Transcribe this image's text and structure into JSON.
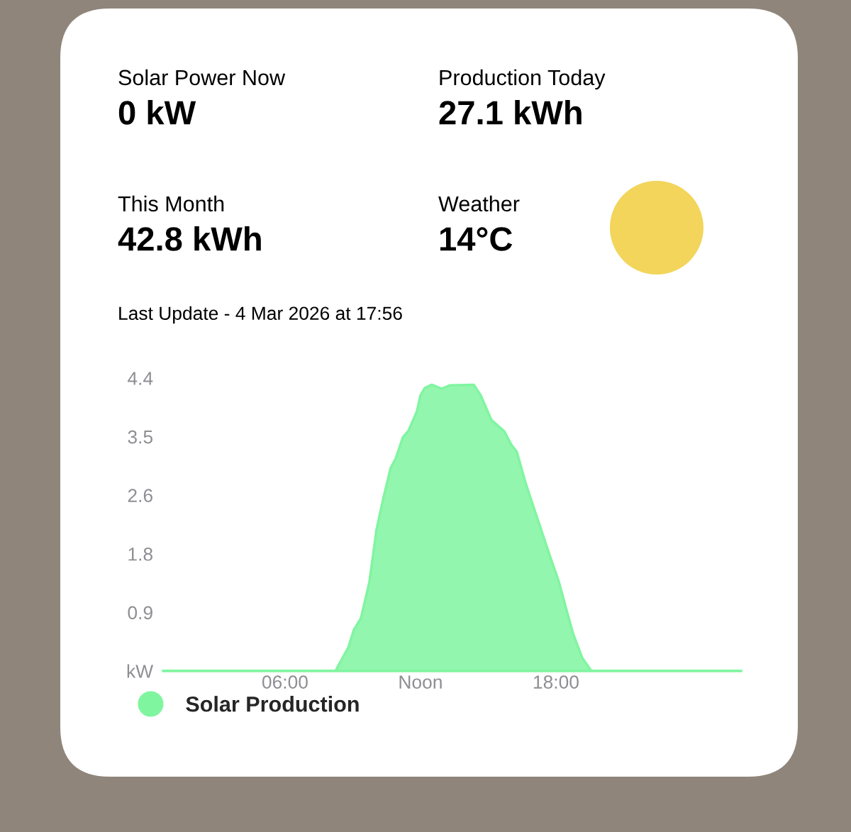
{
  "chart_data": [
    {
      "type": "other",
      "annotations": [
        "Solar Power Now",
        "0 kW",
        "Production Today",
        "27.1 kWh",
        "This Month",
        "42.8 kWh",
        "Weather",
        "14°C"
      ]
    },
    {
      "type": "area",
      "subtitle": "Last Update - 4 Mar 2026 at 17:56",
      "x": [
        0.6,
        8.23,
        8.8,
        9.05,
        9.36,
        9.74,
        10.05,
        10.37,
        10.68,
        10.9,
        11.22,
        11.47,
        11.84,
        12.0,
        12.19,
        12.5,
        12.94,
        13.29,
        14.36,
        14.67,
        15.14,
        15.71,
        16.02,
        16.27,
        16.65,
        16.96,
        17.28,
        17.69,
        18.13,
        18.44,
        18.76,
        19.16,
        19.57,
        26.2
      ],
      "series": [
        {
          "name": "Solar Production",
          "color": "#80f5a0",
          "values": [
            0,
            0,
            0.35,
            0.62,
            0.79,
            1.34,
            2.12,
            2.62,
            3.05,
            3.19,
            3.51,
            3.61,
            3.9,
            4.14,
            4.25,
            4.3,
            4.24,
            4.29,
            4.3,
            4.14,
            3.77,
            3.6,
            3.4,
            3.29,
            2.83,
            2.51,
            2.19,
            1.77,
            1.34,
            0.95,
            0.56,
            0.2,
            0,
            0
          ]
        }
      ],
      "xlim": [
        0.6,
        26.2
      ],
      "xticks": [
        {
          "value": 6,
          "label": "06:00"
        },
        {
          "value": 12,
          "label": "Noon"
        },
        {
          "value": 18,
          "label": "18:00"
        }
      ],
      "ylim": [
        0,
        4.4
      ],
      "yticks": [
        {
          "value": 0,
          "label": "kW"
        },
        {
          "value": 0.88,
          "label": "0.9"
        },
        {
          "value": 1.76,
          "label": "1.8"
        },
        {
          "value": 2.64,
          "label": "2.6"
        },
        {
          "value": 3.52,
          "label": "3.5"
        },
        4.4
      ],
      "legend": "bottom"
    }
  ]
}
